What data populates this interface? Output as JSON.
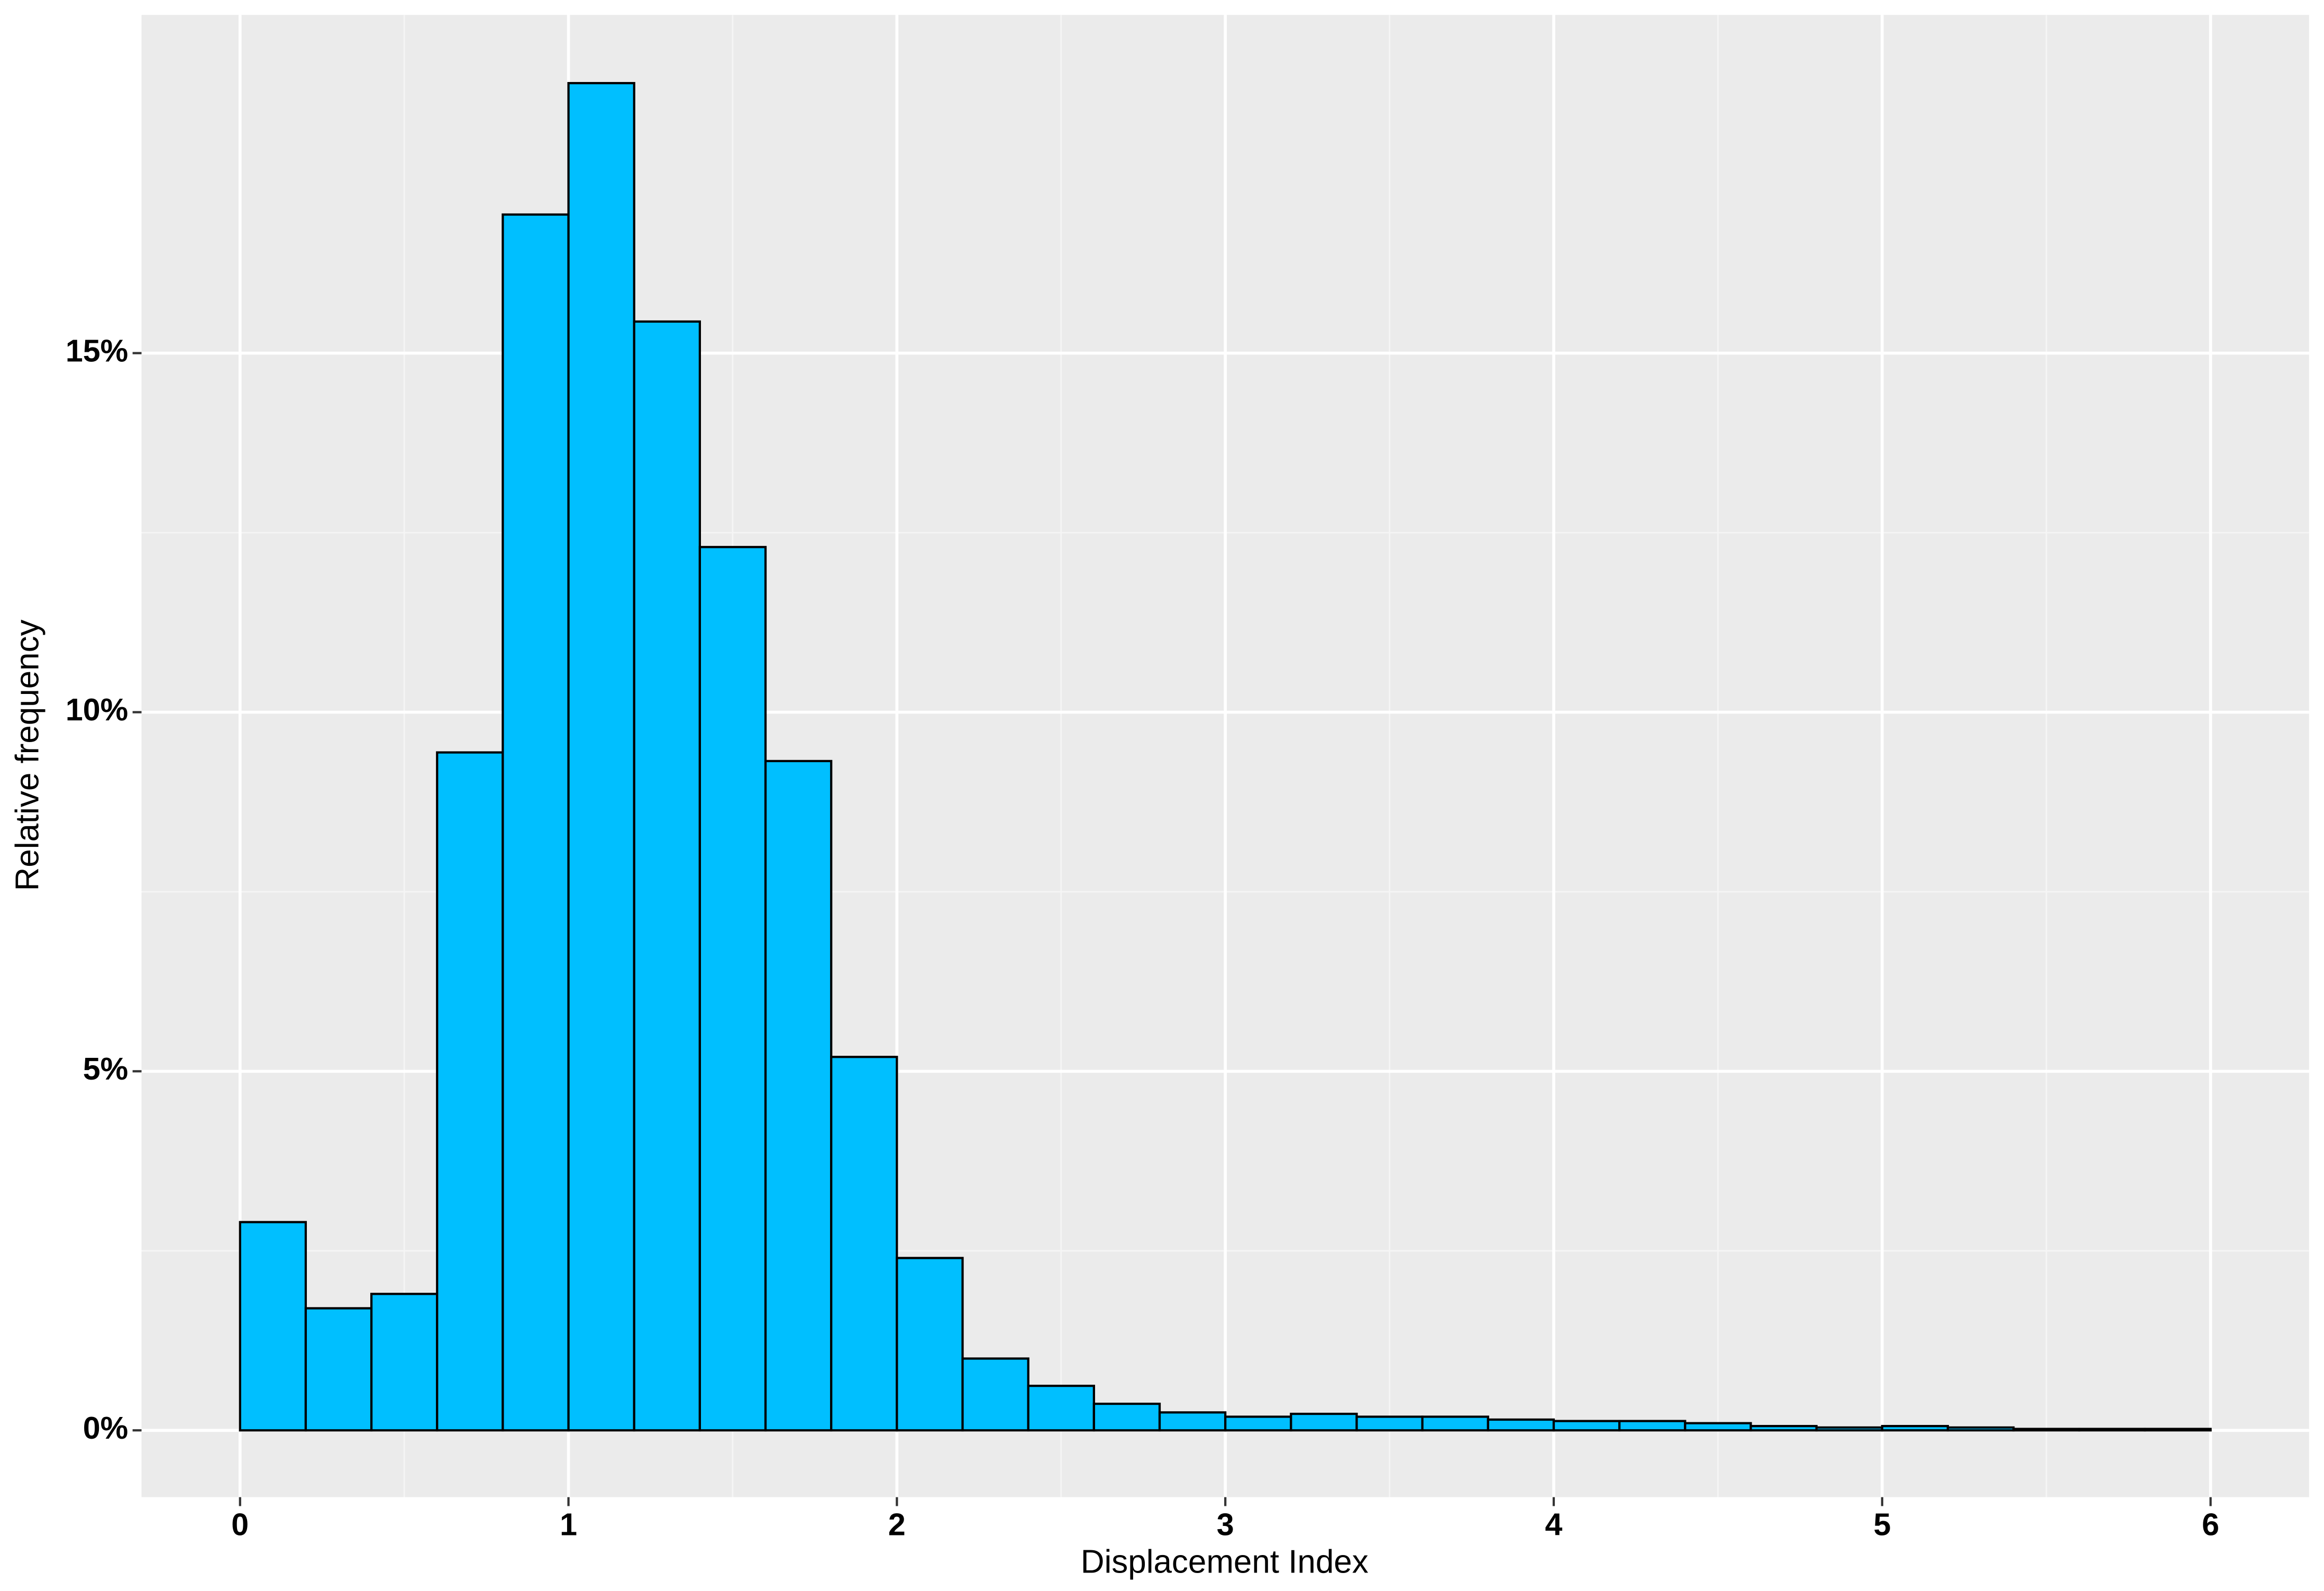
{
  "chart_data": {
    "type": "histogram",
    "x_label": "Displacement Index",
    "y_label": "Relative frequency",
    "bins": [
      0,
      0.2,
      0.4,
      0.6,
      0.8,
      1.0,
      1.2,
      1.4,
      1.6,
      1.8,
      2.0,
      2.2,
      2.4,
      2.6,
      2.8,
      3.0,
      3.2,
      3.4,
      3.6,
      3.8,
      4.0,
      4.2,
      4.4,
      4.6,
      4.8,
      5.0,
      5.2,
      5.4,
      5.6,
      5.8,
      6.0
    ],
    "values": [
      2.9,
      1.7,
      1.9,
      9.44,
      16.93,
      18.76,
      15.44,
      12.3,
      9.32,
      5.2,
      2.4,
      1.0,
      0.62,
      0.37,
      0.25,
      0.19,
      0.23,
      0.19,
      0.19,
      0.15,
      0.13,
      0.13,
      0.1,
      0.06,
      0.04,
      0.06,
      0.04,
      0.02,
      0.02,
      0.02
    ],
    "color": "#00bfff",
    "edge_color": "#000000",
    "xlim": [
      -0.3,
      6.3
    ],
    "xticks": [
      0,
      1,
      2,
      3,
      4,
      5,
      6
    ],
    "ylim": [
      -0.93,
      19.71
    ],
    "yticks": [
      {
        "value": 0,
        "label": "0%"
      },
      {
        "value": 5,
        "label": "5%"
      },
      {
        "value": 10,
        "label": "10%"
      },
      {
        "value": 15,
        "label": "15%"
      }
    ],
    "grid": true
  }
}
